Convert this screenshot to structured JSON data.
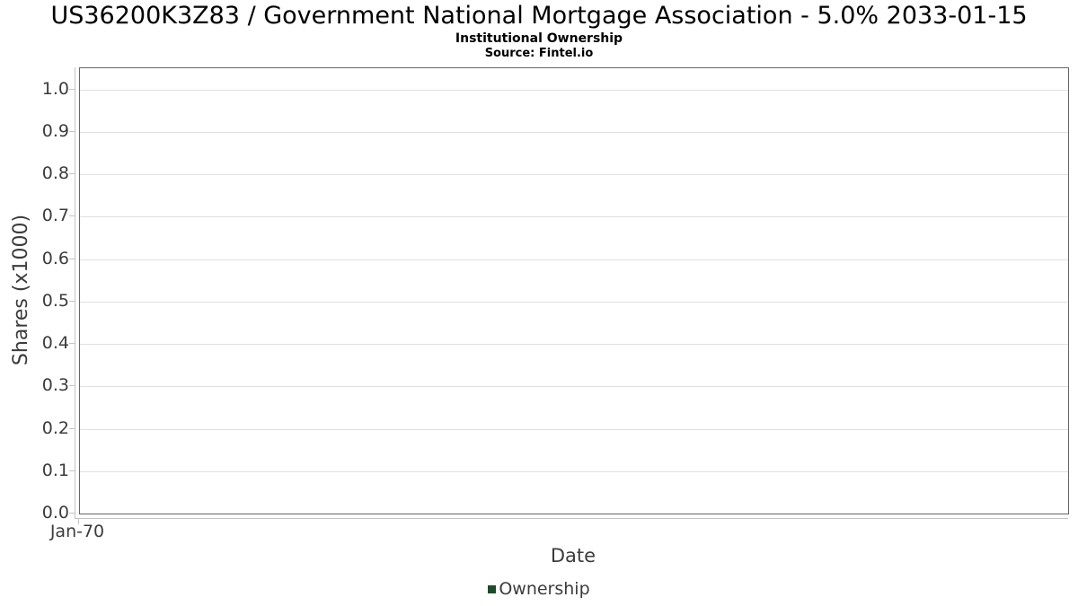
{
  "header": {
    "title": "US36200K3Z83 / Government National Mortgage Association - 5.0% 2033-01-15",
    "subtitle": "Institutional Ownership",
    "source": "Source: Fintel.io"
  },
  "chart_data": {
    "type": "line",
    "title": "US36200K3Z83 / Government National Mortgage Association - 5.0% 2033-01-15",
    "subtitle": "Institutional Ownership",
    "source": "Source: Fintel.io",
    "xlabel": "Date",
    "ylabel": "Shares (x1000)",
    "x_tick_labels": [
      "Jan-70"
    ],
    "y_tick_labels": [
      "0.0",
      "0.1",
      "0.2",
      "0.3",
      "0.4",
      "0.5",
      "0.6",
      "0.7",
      "0.8",
      "0.9",
      "1.0"
    ],
    "y_tick_values": [
      0.0,
      0.1,
      0.2,
      0.3,
      0.4,
      0.5,
      0.6,
      0.7,
      0.8,
      0.9,
      1.0
    ],
    "ylim": [
      0,
      1.05
    ],
    "grid": true,
    "legend": {
      "position": "bottom-center",
      "entries": [
        {
          "label": "Ownership",
          "color": "#1e4a2a"
        }
      ]
    },
    "series": [
      {
        "name": "Ownership",
        "x": [],
        "y": []
      }
    ]
  },
  "colors": {
    "background": "#ffffff",
    "plot_border": "#666666",
    "gridline": "#e0e0e0",
    "axis_line": "#c4c4c4",
    "tick_text": "#3c3c3c",
    "title_text": "#000000",
    "legend_marker": "#1e4a2a"
  }
}
